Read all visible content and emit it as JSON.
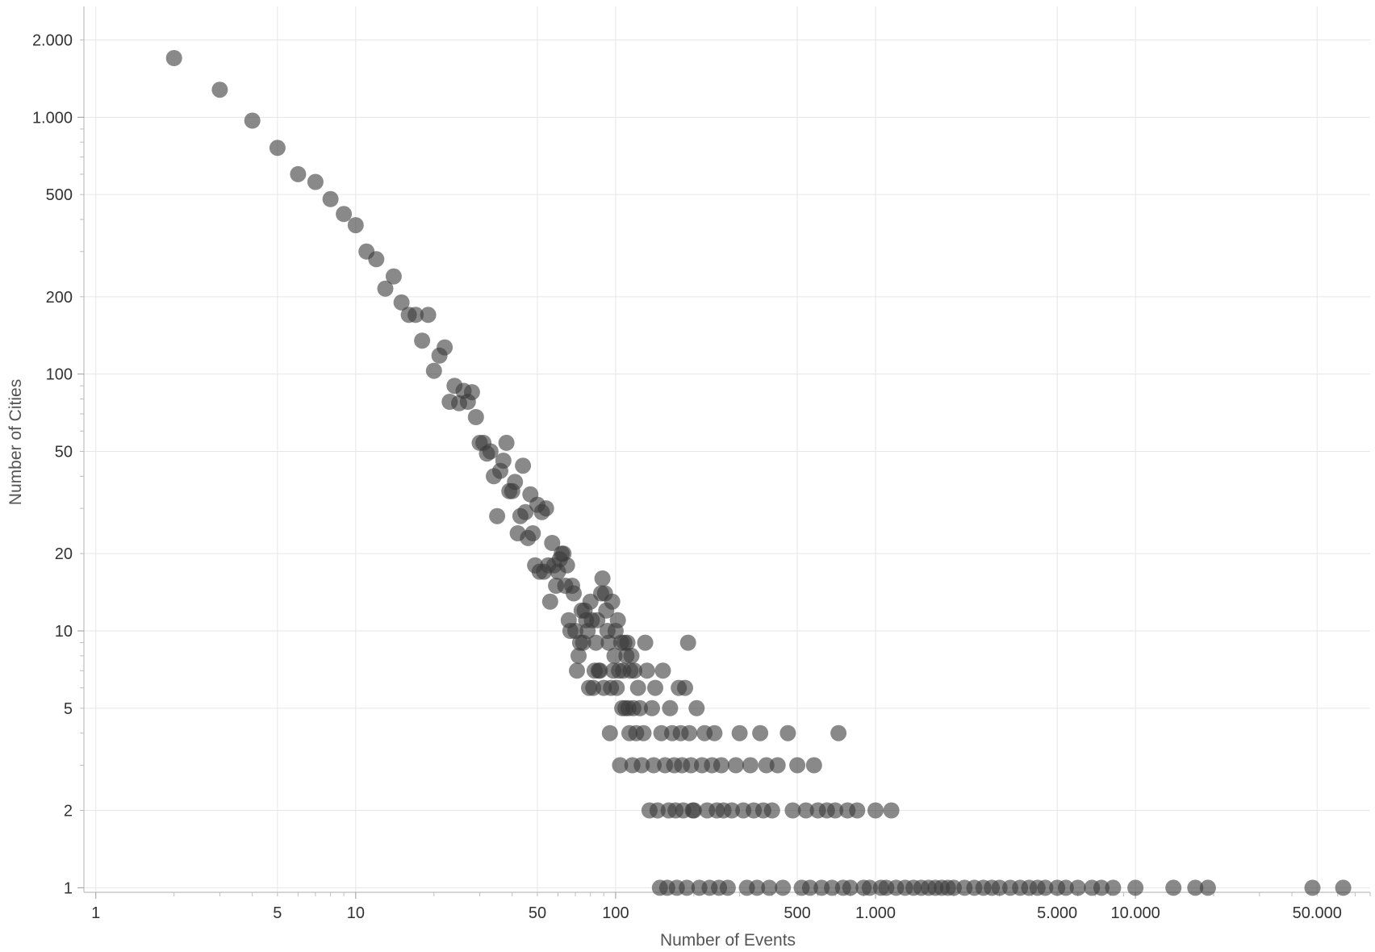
{
  "chart_data": {
    "type": "scatter",
    "title": "",
    "xlabel": "Number of Events",
    "ylabel": "Number of Cities",
    "x_scale": "log",
    "y_scale": "log",
    "xlim": [
      0.9,
      80000
    ],
    "ylim": [
      0.96,
      2700
    ],
    "grid": true,
    "x_ticks": [
      {
        "value": 1,
        "label": "1"
      },
      {
        "value": 5,
        "label": "5"
      },
      {
        "value": 10,
        "label": "10"
      },
      {
        "value": 50,
        "label": "50"
      },
      {
        "value": 100,
        "label": "100"
      },
      {
        "value": 500,
        "label": "500"
      },
      {
        "value": 1000,
        "label": "1.000"
      },
      {
        "value": 5000,
        "label": "5.000"
      },
      {
        "value": 10000,
        "label": "10.000"
      },
      {
        "value": 50000,
        "label": "50.000"
      }
    ],
    "y_ticks": [
      {
        "value": 1,
        "label": "1"
      },
      {
        "value": 2,
        "label": "2"
      },
      {
        "value": 5,
        "label": "5"
      },
      {
        "value": 10,
        "label": "10"
      },
      {
        "value": 20,
        "label": "20"
      },
      {
        "value": 50,
        "label": "50"
      },
      {
        "value": 100,
        "label": "100"
      },
      {
        "value": 200,
        "label": "200"
      },
      {
        "value": 500,
        "label": "500"
      },
      {
        "value": 1000,
        "label": "1.000"
      },
      {
        "value": 2000,
        "label": "2.000"
      }
    ],
    "points": [
      [
        2,
        1700
      ],
      [
        3,
        1280
      ],
      [
        4,
        970
      ],
      [
        5,
        760
      ],
      [
        6,
        600
      ],
      [
        7,
        560
      ],
      [
        8,
        480
      ],
      [
        9,
        420
      ],
      [
        10,
        380
      ],
      [
        11,
        300
      ],
      [
        12,
        280
      ],
      [
        13,
        215
      ],
      [
        14,
        240
      ],
      [
        15,
        190
      ],
      [
        16,
        170
      ],
      [
        17,
        170
      ],
      [
        18,
        135
      ],
      [
        19,
        170
      ],
      [
        20,
        103
      ],
      [
        21,
        118
      ],
      [
        22,
        127
      ],
      [
        23,
        78
      ],
      [
        24,
        90
      ],
      [
        25,
        77
      ],
      [
        26,
        86
      ],
      [
        27,
        78
      ],
      [
        28,
        85
      ],
      [
        29,
        68
      ],
      [
        30,
        54
      ],
      [
        31,
        54
      ],
      [
        32,
        49
      ],
      [
        33,
        50
      ],
      [
        34,
        40
      ],
      [
        35,
        28
      ],
      [
        36,
        42
      ],
      [
        37,
        46
      ],
      [
        38,
        54
      ],
      [
        39,
        35
      ],
      [
        40,
        35
      ],
      [
        41,
        38
      ],
      [
        42,
        24
      ],
      [
        43,
        28
      ],
      [
        44,
        44
      ],
      [
        45,
        29
      ],
      [
        46,
        23
      ],
      [
        47,
        34
      ],
      [
        48,
        24
      ],
      [
        49,
        18
      ],
      [
        50,
        31
      ],
      [
        51,
        17
      ],
      [
        52,
        29
      ],
      [
        53,
        17
      ],
      [
        54,
        30
      ],
      [
        55,
        18
      ],
      [
        56,
        13
      ],
      [
        57,
        22
      ],
      [
        58,
        18
      ],
      [
        59,
        15
      ],
      [
        60,
        17
      ],
      [
        61,
        19
      ],
      [
        62,
        20
      ],
      [
        63,
        20
      ],
      [
        64,
        15
      ],
      [
        65,
        18
      ],
      [
        66,
        11
      ],
      [
        67,
        10
      ],
      [
        68,
        15
      ],
      [
        69,
        14
      ],
      [
        70,
        10
      ],
      [
        71,
        7
      ],
      [
        72,
        8
      ],
      [
        73,
        9
      ],
      [
        74,
        12
      ],
      [
        75,
        9
      ],
      [
        76,
        12
      ],
      [
        77,
        11
      ],
      [
        78,
        10
      ],
      [
        79,
        6
      ],
      [
        80,
        13
      ],
      [
        81,
        11
      ],
      [
        82,
        6
      ],
      [
        83,
        7
      ],
      [
        84,
        9
      ],
      [
        85,
        11
      ],
      [
        86,
        7
      ],
      [
        87,
        7
      ],
      [
        88,
        14
      ],
      [
        89,
        16
      ],
      [
        90,
        6
      ],
      [
        91,
        14
      ],
      [
        92,
        12
      ],
      [
        93,
        10
      ],
      [
        94,
        9
      ],
      [
        95,
        4
      ],
      [
        96,
        6
      ],
      [
        97,
        13
      ],
      [
        98,
        7
      ],
      [
        99,
        8
      ],
      [
        100,
        10
      ],
      [
        101,
        6
      ],
      [
        102,
        11
      ],
      [
        103,
        7
      ],
      [
        104,
        3
      ],
      [
        105,
        9
      ],
      [
        106,
        5
      ],
      [
        107,
        7
      ],
      [
        108,
        9
      ],
      [
        109,
        5
      ],
      [
        110,
        8
      ],
      [
        111,
        9
      ],
      [
        112,
        5
      ],
      [
        113,
        4
      ],
      [
        114,
        7
      ],
      [
        115,
        8
      ],
      [
        116,
        3
      ],
      [
        117,
        5
      ],
      [
        118,
        7
      ],
      [
        120,
        4
      ],
      [
        122,
        6
      ],
      [
        124,
        5
      ],
      [
        126,
        3
      ],
      [
        128,
        4
      ],
      [
        130,
        9
      ],
      [
        132,
        7
      ],
      [
        135,
        2
      ],
      [
        138,
        5
      ],
      [
        140,
        3
      ],
      [
        142,
        6
      ],
      [
        145,
        2
      ],
      [
        148,
        1
      ],
      [
        150,
        4
      ],
      [
        152,
        7
      ],
      [
        155,
        3
      ],
      [
        158,
        1
      ],
      [
        160,
        2
      ],
      [
        162,
        5
      ],
      [
        165,
        4
      ],
      [
        168,
        3
      ],
      [
        170,
        2
      ],
      [
        172,
        1
      ],
      [
        175,
        6
      ],
      [
        178,
        4
      ],
      [
        180,
        3
      ],
      [
        182,
        2
      ],
      [
        185,
        6
      ],
      [
        188,
        1
      ],
      [
        190,
        9
      ],
      [
        192,
        4
      ],
      [
        195,
        3
      ],
      [
        198,
        2
      ],
      [
        200,
        2
      ],
      [
        205,
        5
      ],
      [
        210,
        1
      ],
      [
        215,
        3
      ],
      [
        220,
        4
      ],
      [
        225,
        2
      ],
      [
        230,
        1
      ],
      [
        235,
        3
      ],
      [
        240,
        4
      ],
      [
        245,
        2
      ],
      [
        250,
        1
      ],
      [
        255,
        3
      ],
      [
        260,
        2
      ],
      [
        270,
        1
      ],
      [
        280,
        2
      ],
      [
        290,
        3
      ],
      [
        300,
        4
      ],
      [
        310,
        2
      ],
      [
        320,
        1
      ],
      [
        330,
        3
      ],
      [
        340,
        2
      ],
      [
        350,
        1
      ],
      [
        360,
        4
      ],
      [
        370,
        2
      ],
      [
        380,
        3
      ],
      [
        390,
        1
      ],
      [
        400,
        2
      ],
      [
        420,
        3
      ],
      [
        440,
        1
      ],
      [
        460,
        4
      ],
      [
        480,
        2
      ],
      [
        500,
        3
      ],
      [
        520,
        1
      ],
      [
        540,
        2
      ],
      [
        560,
        1
      ],
      [
        580,
        3
      ],
      [
        600,
        2
      ],
      [
        620,
        1
      ],
      [
        650,
        2
      ],
      [
        680,
        1
      ],
      [
        700,
        2
      ],
      [
        720,
        4
      ],
      [
        750,
        1
      ],
      [
        780,
        2
      ],
      [
        800,
        1
      ],
      [
        850,
        2
      ],
      [
        900,
        1
      ],
      [
        950,
        1
      ],
      [
        1000,
        2
      ],
      [
        1050,
        1
      ],
      [
        1100,
        1
      ],
      [
        1150,
        2
      ],
      [
        1200,
        1
      ],
      [
        1300,
        1
      ],
      [
        1400,
        1
      ],
      [
        1500,
        1
      ],
      [
        1600,
        1
      ],
      [
        1700,
        1
      ],
      [
        1800,
        1
      ],
      [
        1900,
        1
      ],
      [
        2000,
        1
      ],
      [
        2200,
        1
      ],
      [
        2400,
        1
      ],
      [
        2600,
        1
      ],
      [
        2800,
        1
      ],
      [
        3000,
        1
      ],
      [
        3300,
        1
      ],
      [
        3600,
        1
      ],
      [
        3900,
        1
      ],
      [
        4200,
        1
      ],
      [
        4500,
        1
      ],
      [
        5000,
        1
      ],
      [
        5400,
        1
      ],
      [
        6000,
        1
      ],
      [
        6800,
        1
      ],
      [
        7400,
        1
      ],
      [
        8200,
        1
      ],
      [
        10000,
        1
      ],
      [
        14000,
        1
      ],
      [
        17000,
        1
      ],
      [
        19000,
        1
      ],
      [
        48000,
        1
      ],
      [
        63000,
        1
      ]
    ]
  }
}
